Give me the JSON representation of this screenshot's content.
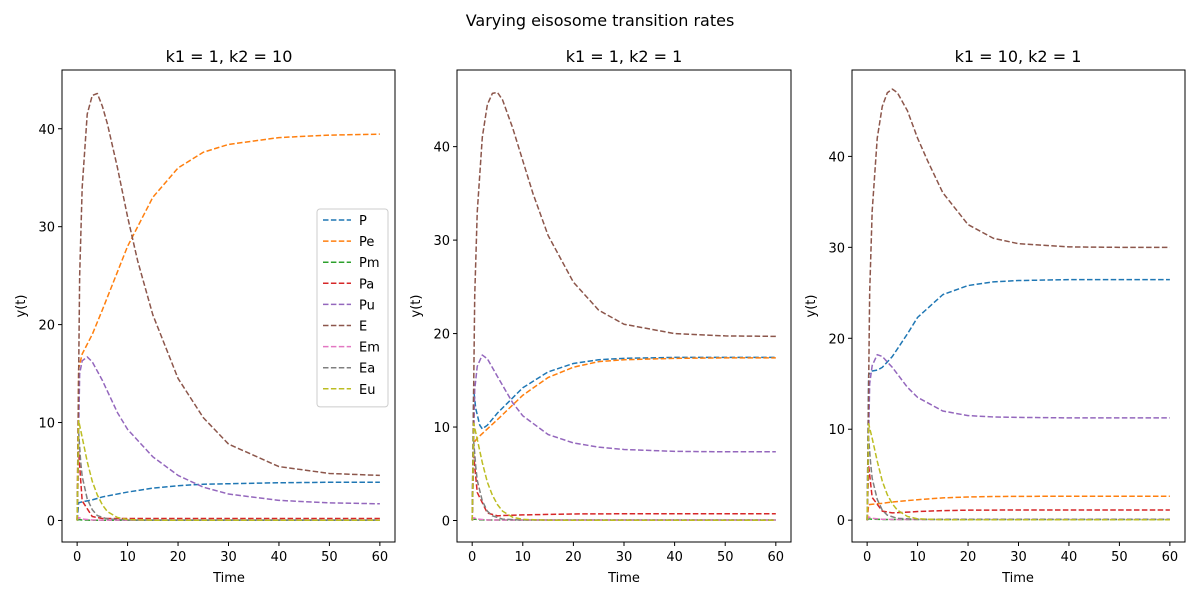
{
  "suptitle": "Varying eisosome transition rates",
  "colors": {
    "P": "#1f77b4",
    "Pe": "#ff7f0e",
    "Pm": "#2ca02c",
    "Pa": "#d62728",
    "Pu": "#9467bd",
    "E": "#8c564b",
    "Em": "#e377c2",
    "Ea": "#7f7f7f",
    "Eu": "#bcbd22"
  },
  "chart_data": [
    {
      "type": "line",
      "title": "k1 = 1, k2 = 10",
      "xlabel": "Time",
      "ylabel": "y(t)",
      "xlim": [
        -3,
        63
      ],
      "ylim": [
        -2.2,
        46
      ],
      "xticks": [
        0,
        10,
        20,
        30,
        40,
        50,
        60
      ],
      "yticks": [
        0,
        10,
        20,
        30,
        40
      ],
      "legend": "center-right",
      "line_style": "dashed",
      "series": [
        {
          "name": "P",
          "x": [
            0,
            0.3,
            1,
            3,
            5,
            10,
            15,
            20,
            25,
            30,
            40,
            50,
            60
          ],
          "y": [
            0,
            1.8,
            1.9,
            2.1,
            2.4,
            2.9,
            3.3,
            3.55,
            3.7,
            3.75,
            3.85,
            3.9,
            3.9
          ]
        },
        {
          "name": "Pe",
          "x": [
            0,
            0.3,
            1,
            3,
            5,
            10,
            15,
            20,
            25,
            30,
            40,
            50,
            60
          ],
          "y": [
            0,
            15.5,
            17,
            19,
            21.5,
            28,
            33,
            36,
            37.6,
            38.4,
            39.1,
            39.35,
            39.45
          ]
        },
        {
          "name": "Pm",
          "x": [
            0,
            0.3,
            1,
            3,
            5,
            10,
            20,
            30,
            40,
            50,
            60
          ],
          "y": [
            0,
            0.1,
            0.05,
            0.02,
            0.02,
            0.02,
            0.02,
            0.02,
            0.02,
            0.02,
            0.02
          ]
        },
        {
          "name": "Pa",
          "x": [
            0,
            0.3,
            1,
            3,
            5,
            10,
            20,
            30,
            40,
            50,
            60
          ],
          "y": [
            0,
            7,
            2,
            0.4,
            0.2,
            0.2,
            0.2,
            0.2,
            0.2,
            0.2,
            0.2
          ]
        },
        {
          "name": "Pu",
          "x": [
            0,
            0.5,
            1,
            2,
            3,
            5,
            8,
            10,
            15,
            20,
            25,
            30,
            40,
            50,
            60
          ],
          "y": [
            0,
            15,
            16.3,
            16.7,
            16.2,
            14.3,
            11,
            9.3,
            6.5,
            4.6,
            3.4,
            2.7,
            2.05,
            1.8,
            1.7
          ]
        },
        {
          "name": "E",
          "x": [
            0,
            0.5,
            1,
            2,
            3,
            4,
            5,
            6,
            8,
            10,
            12,
            15,
            20,
            25,
            30,
            40,
            50,
            60
          ],
          "y": [
            0,
            25,
            34,
            41.5,
            43.4,
            43.6,
            42.3,
            40.5,
            36,
            31,
            26.5,
            21,
            14.5,
            10.5,
            7.8,
            5.5,
            4.8,
            4.6
          ]
        },
        {
          "name": "Em",
          "x": [
            0,
            0.3,
            1,
            3,
            5,
            10,
            20,
            30,
            40,
            50,
            60
          ],
          "y": [
            0,
            0.3,
            0.15,
            0.05,
            0.03,
            0.03,
            0.03,
            0.03,
            0.03,
            0.03,
            0.03
          ]
        },
        {
          "name": "Ea",
          "x": [
            0,
            0.3,
            0.7,
            1,
            2,
            3,
            4,
            6,
            10,
            20,
            30,
            40,
            50,
            60
          ],
          "y": [
            0,
            9,
            6,
            4.5,
            2.2,
            1.1,
            0.5,
            0.15,
            0.05,
            0.05,
            0.05,
            0.05,
            0.05,
            0.05
          ]
        },
        {
          "name": "Eu",
          "x": [
            0,
            0.3,
            1,
            2,
            3,
            4,
            5,
            6,
            8,
            10,
            15,
            20,
            30,
            40,
            50,
            60
          ],
          "y": [
            0,
            10.2,
            8.5,
            6,
            4,
            2.6,
            1.6,
            0.9,
            0.3,
            0.1,
            0.02,
            0.02,
            0.02,
            0.02,
            0.02,
            0.02
          ]
        }
      ]
    },
    {
      "type": "line",
      "title": "k1 = 1, k2 = 1",
      "xlabel": "Time",
      "ylabel": "y(t)",
      "xlim": [
        -3,
        63
      ],
      "ylim": [
        -2.3,
        48.2
      ],
      "xticks": [
        0,
        10,
        20,
        30,
        40,
        50,
        60
      ],
      "yticks": [
        0,
        10,
        20,
        30,
        40
      ],
      "line_style": "dashed",
      "series": [
        {
          "name": "P",
          "x": [
            0,
            0.3,
            0.7,
            1.5,
            2,
            3,
            5,
            10,
            15,
            20,
            25,
            30,
            40,
            50,
            60
          ],
          "y": [
            0,
            14,
            12,
            10.2,
            9.8,
            10.2,
            11.5,
            14.2,
            15.9,
            16.8,
            17.2,
            17.35,
            17.45,
            17.45,
            17.45
          ]
        },
        {
          "name": "Pe",
          "x": [
            0,
            0.3,
            1,
            3,
            5,
            10,
            15,
            20,
            25,
            30,
            40,
            50,
            60
          ],
          "y": [
            0,
            8.3,
            8.8,
            9.8,
            10.8,
            13.4,
            15.3,
            16.4,
            17,
            17.2,
            17.35,
            17.4,
            17.4
          ]
        },
        {
          "name": "Pm",
          "x": [
            0,
            0.3,
            1,
            3,
            5,
            10,
            20,
            30,
            40,
            50,
            60
          ],
          "y": [
            0,
            0.2,
            0.08,
            0.05,
            0.05,
            0.05,
            0.05,
            0.05,
            0.05,
            0.05,
            0.05
          ]
        },
        {
          "name": "Pa",
          "x": [
            0,
            0.3,
            1,
            3,
            5,
            7,
            10,
            20,
            30,
            40,
            50,
            60
          ],
          "y": [
            0,
            7,
            3,
            0.8,
            0.5,
            0.55,
            0.6,
            0.7,
            0.72,
            0.72,
            0.72,
            0.72
          ]
        },
        {
          "name": "Pu",
          "x": [
            0,
            0.5,
            1,
            2,
            3,
            5,
            8,
            10,
            15,
            20,
            25,
            30,
            40,
            50,
            60
          ],
          "y": [
            0,
            14,
            16.5,
            17.7,
            17.3,
            15.4,
            12.6,
            11.2,
            9.2,
            8.3,
            7.85,
            7.6,
            7.4,
            7.35,
            7.35
          ]
        },
        {
          "name": "E",
          "x": [
            0,
            0.5,
            1,
            2,
            3,
            4,
            5,
            6,
            8,
            10,
            12,
            15,
            20,
            25,
            30,
            40,
            50,
            60
          ],
          "y": [
            0,
            24,
            33,
            41,
            44.5,
            45.7,
            45.8,
            45,
            42,
            38.5,
            35,
            30.5,
            25.5,
            22.5,
            21,
            20,
            19.75,
            19.7
          ]
        },
        {
          "name": "Em",
          "x": [
            0,
            0.3,
            1,
            3,
            5,
            10,
            20,
            30,
            40,
            50,
            60
          ],
          "y": [
            0,
            0.3,
            0.15,
            0.06,
            0.05,
            0.05,
            0.05,
            0.05,
            0.05,
            0.05,
            0.05
          ]
        },
        {
          "name": "Ea",
          "x": [
            0,
            0.3,
            0.7,
            1,
            2,
            3,
            4,
            6,
            10,
            20,
            30,
            40,
            50,
            60
          ],
          "y": [
            0,
            8.5,
            5.8,
            4.3,
            2.1,
            1,
            0.5,
            0.15,
            0.05,
            0.05,
            0.05,
            0.05,
            0.05,
            0.05
          ]
        },
        {
          "name": "Eu",
          "x": [
            0,
            0.3,
            1,
            2,
            3,
            4,
            5,
            6,
            8,
            10,
            15,
            20,
            30,
            40,
            50,
            60
          ],
          "y": [
            0,
            10.4,
            8.7,
            6.2,
            4.1,
            2.7,
            1.7,
            1,
            0.35,
            0.12,
            0.03,
            0.03,
            0.03,
            0.03,
            0.03,
            0.03
          ]
        }
      ]
    },
    {
      "type": "line",
      "title": "k1 = 10, k2 = 1",
      "xlabel": "Time",
      "ylabel": "y(t)",
      "xlim": [
        -3,
        63
      ],
      "ylim": [
        -2.4,
        49.5
      ],
      "xticks": [
        0,
        10,
        20,
        30,
        40,
        50,
        60
      ],
      "yticks": [
        0,
        10,
        20,
        30,
        40
      ],
      "line_style": "dashed",
      "series": [
        {
          "name": "P",
          "x": [
            0,
            0.3,
            1,
            2,
            3,
            5,
            8,
            10,
            15,
            20,
            25,
            30,
            40,
            50,
            60
          ],
          "y": [
            0,
            16,
            16.4,
            16.5,
            16.8,
            18,
            20.5,
            22.3,
            24.8,
            25.8,
            26.2,
            26.35,
            26.45,
            26.45,
            26.45
          ]
        },
        {
          "name": "Pe",
          "x": [
            0,
            0.3,
            1,
            3,
            5,
            10,
            15,
            20,
            25,
            30,
            40,
            50,
            60
          ],
          "y": [
            0,
            1.7,
            1.75,
            1.85,
            2,
            2.25,
            2.45,
            2.55,
            2.6,
            2.62,
            2.63,
            2.63,
            2.63
          ]
        },
        {
          "name": "Pm",
          "x": [
            0,
            0.3,
            1,
            3,
            5,
            10,
            20,
            30,
            40,
            50,
            60
          ],
          "y": [
            0,
            0.15,
            0.1,
            0.08,
            0.08,
            0.08,
            0.08,
            0.08,
            0.08,
            0.08,
            0.08
          ]
        },
        {
          "name": "Pa",
          "x": [
            0,
            0.3,
            1,
            3,
            5,
            7,
            10,
            15,
            20,
            30,
            40,
            50,
            60
          ],
          "y": [
            0,
            6,
            2.5,
            1,
            0.8,
            0.85,
            0.95,
            1.05,
            1.1,
            1.12,
            1.12,
            1.12,
            1.12
          ]
        },
        {
          "name": "Pu",
          "x": [
            0,
            0.5,
            1,
            2,
            3,
            5,
            8,
            10,
            15,
            20,
            25,
            30,
            40,
            50,
            60
          ],
          "y": [
            0,
            15,
            17,
            18.2,
            18,
            16.8,
            14.6,
            13.5,
            12,
            11.5,
            11.35,
            11.3,
            11.25,
            11.25,
            11.25
          ]
        },
        {
          "name": "E",
          "x": [
            0,
            0.5,
            1,
            2,
            3,
            4,
            5,
            6,
            8,
            10,
            12,
            15,
            20,
            25,
            30,
            40,
            50,
            60
          ],
          "y": [
            0,
            25,
            34,
            42,
            45.5,
            47,
            47.4,
            47,
            45,
            42,
            39.5,
            36,
            32.5,
            31,
            30.4,
            30.05,
            30,
            30
          ]
        },
        {
          "name": "Em",
          "x": [
            0,
            0.3,
            1,
            3,
            5,
            10,
            20,
            30,
            40,
            50,
            60
          ],
          "y": [
            0,
            0.35,
            0.2,
            0.1,
            0.08,
            0.08,
            0.08,
            0.08,
            0.08,
            0.08,
            0.08
          ]
        },
        {
          "name": "Ea",
          "x": [
            0,
            0.3,
            0.7,
            1,
            2,
            3,
            4,
            6,
            10,
            20,
            30,
            40,
            50,
            60
          ],
          "y": [
            0,
            9,
            6.2,
            4.6,
            2.3,
            1.1,
            0.55,
            0.2,
            0.1,
            0.1,
            0.1,
            0.1,
            0.1,
            0.1
          ]
        },
        {
          "name": "Eu",
          "x": [
            0,
            0.3,
            1,
            2,
            3,
            4,
            5,
            6,
            8,
            10,
            15,
            20,
            30,
            40,
            50,
            60
          ],
          "y": [
            0,
            10.6,
            9,
            6.5,
            4.3,
            2.8,
            1.8,
            1.1,
            0.4,
            0.15,
            0.05,
            0.05,
            0.05,
            0.05,
            0.05,
            0.05
          ]
        }
      ]
    }
  ]
}
